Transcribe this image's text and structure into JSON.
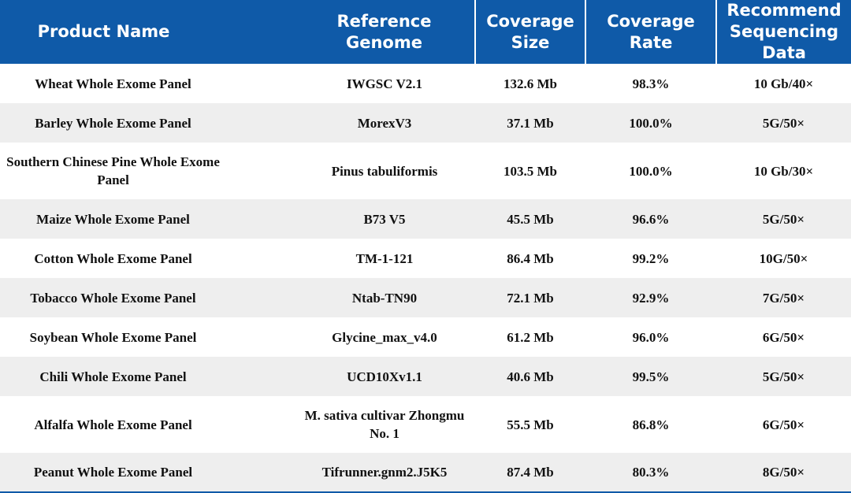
{
  "table": {
    "columns": [
      "Product Name",
      "Reference Genome",
      "Coverage Size",
      "Coverage Rate",
      "Recommend Sequencing Data"
    ],
    "rows": [
      [
        "Wheat Whole Exome Panel",
        "IWGSC V2.1",
        "132.6 Mb",
        "98.3%",
        "10 Gb/40×"
      ],
      [
        "Barley Whole Exome Panel",
        "MorexV3",
        "37.1 Mb",
        "100.0%",
        "5G/50×"
      ],
      [
        "Southern Chinese Pine Whole Exome Panel",
        "Pinus tabuliformis",
        "103.5 Mb",
        "100.0%",
        "10 Gb/30×"
      ],
      [
        "Maize Whole Exome Panel",
        "B73 V5",
        "45.5 Mb",
        "96.6%",
        "5G/50×"
      ],
      [
        "Cotton Whole Exome Panel",
        "TM-1-121",
        "86.4 Mb",
        "99.2%",
        "10G/50×"
      ],
      [
        "Tobacco Whole Exome Panel",
        "Ntab-TN90",
        "72.1 Mb",
        "92.9%",
        "7G/50×"
      ],
      [
        "Soybean Whole Exome Panel",
        "Glycine_max_v4.0",
        "61.2 Mb",
        "96.0%",
        "6G/50×"
      ],
      [
        "Chili Whole Exome Panel",
        "UCD10Xv1.1",
        "40.6 Mb",
        "99.5%",
        "5G/50×"
      ],
      [
        "Alfalfa Whole Exome Panel",
        "M. sativa cultivar Zhongmu No. 1",
        "55.5 Mb",
        "86.8%",
        "6G/50×"
      ],
      [
        "Peanut Whole Exome Panel",
        "Tifrunner.gnm2.J5K5",
        "87.4 Mb",
        "80.3%",
        "8G/50×"
      ]
    ]
  }
}
